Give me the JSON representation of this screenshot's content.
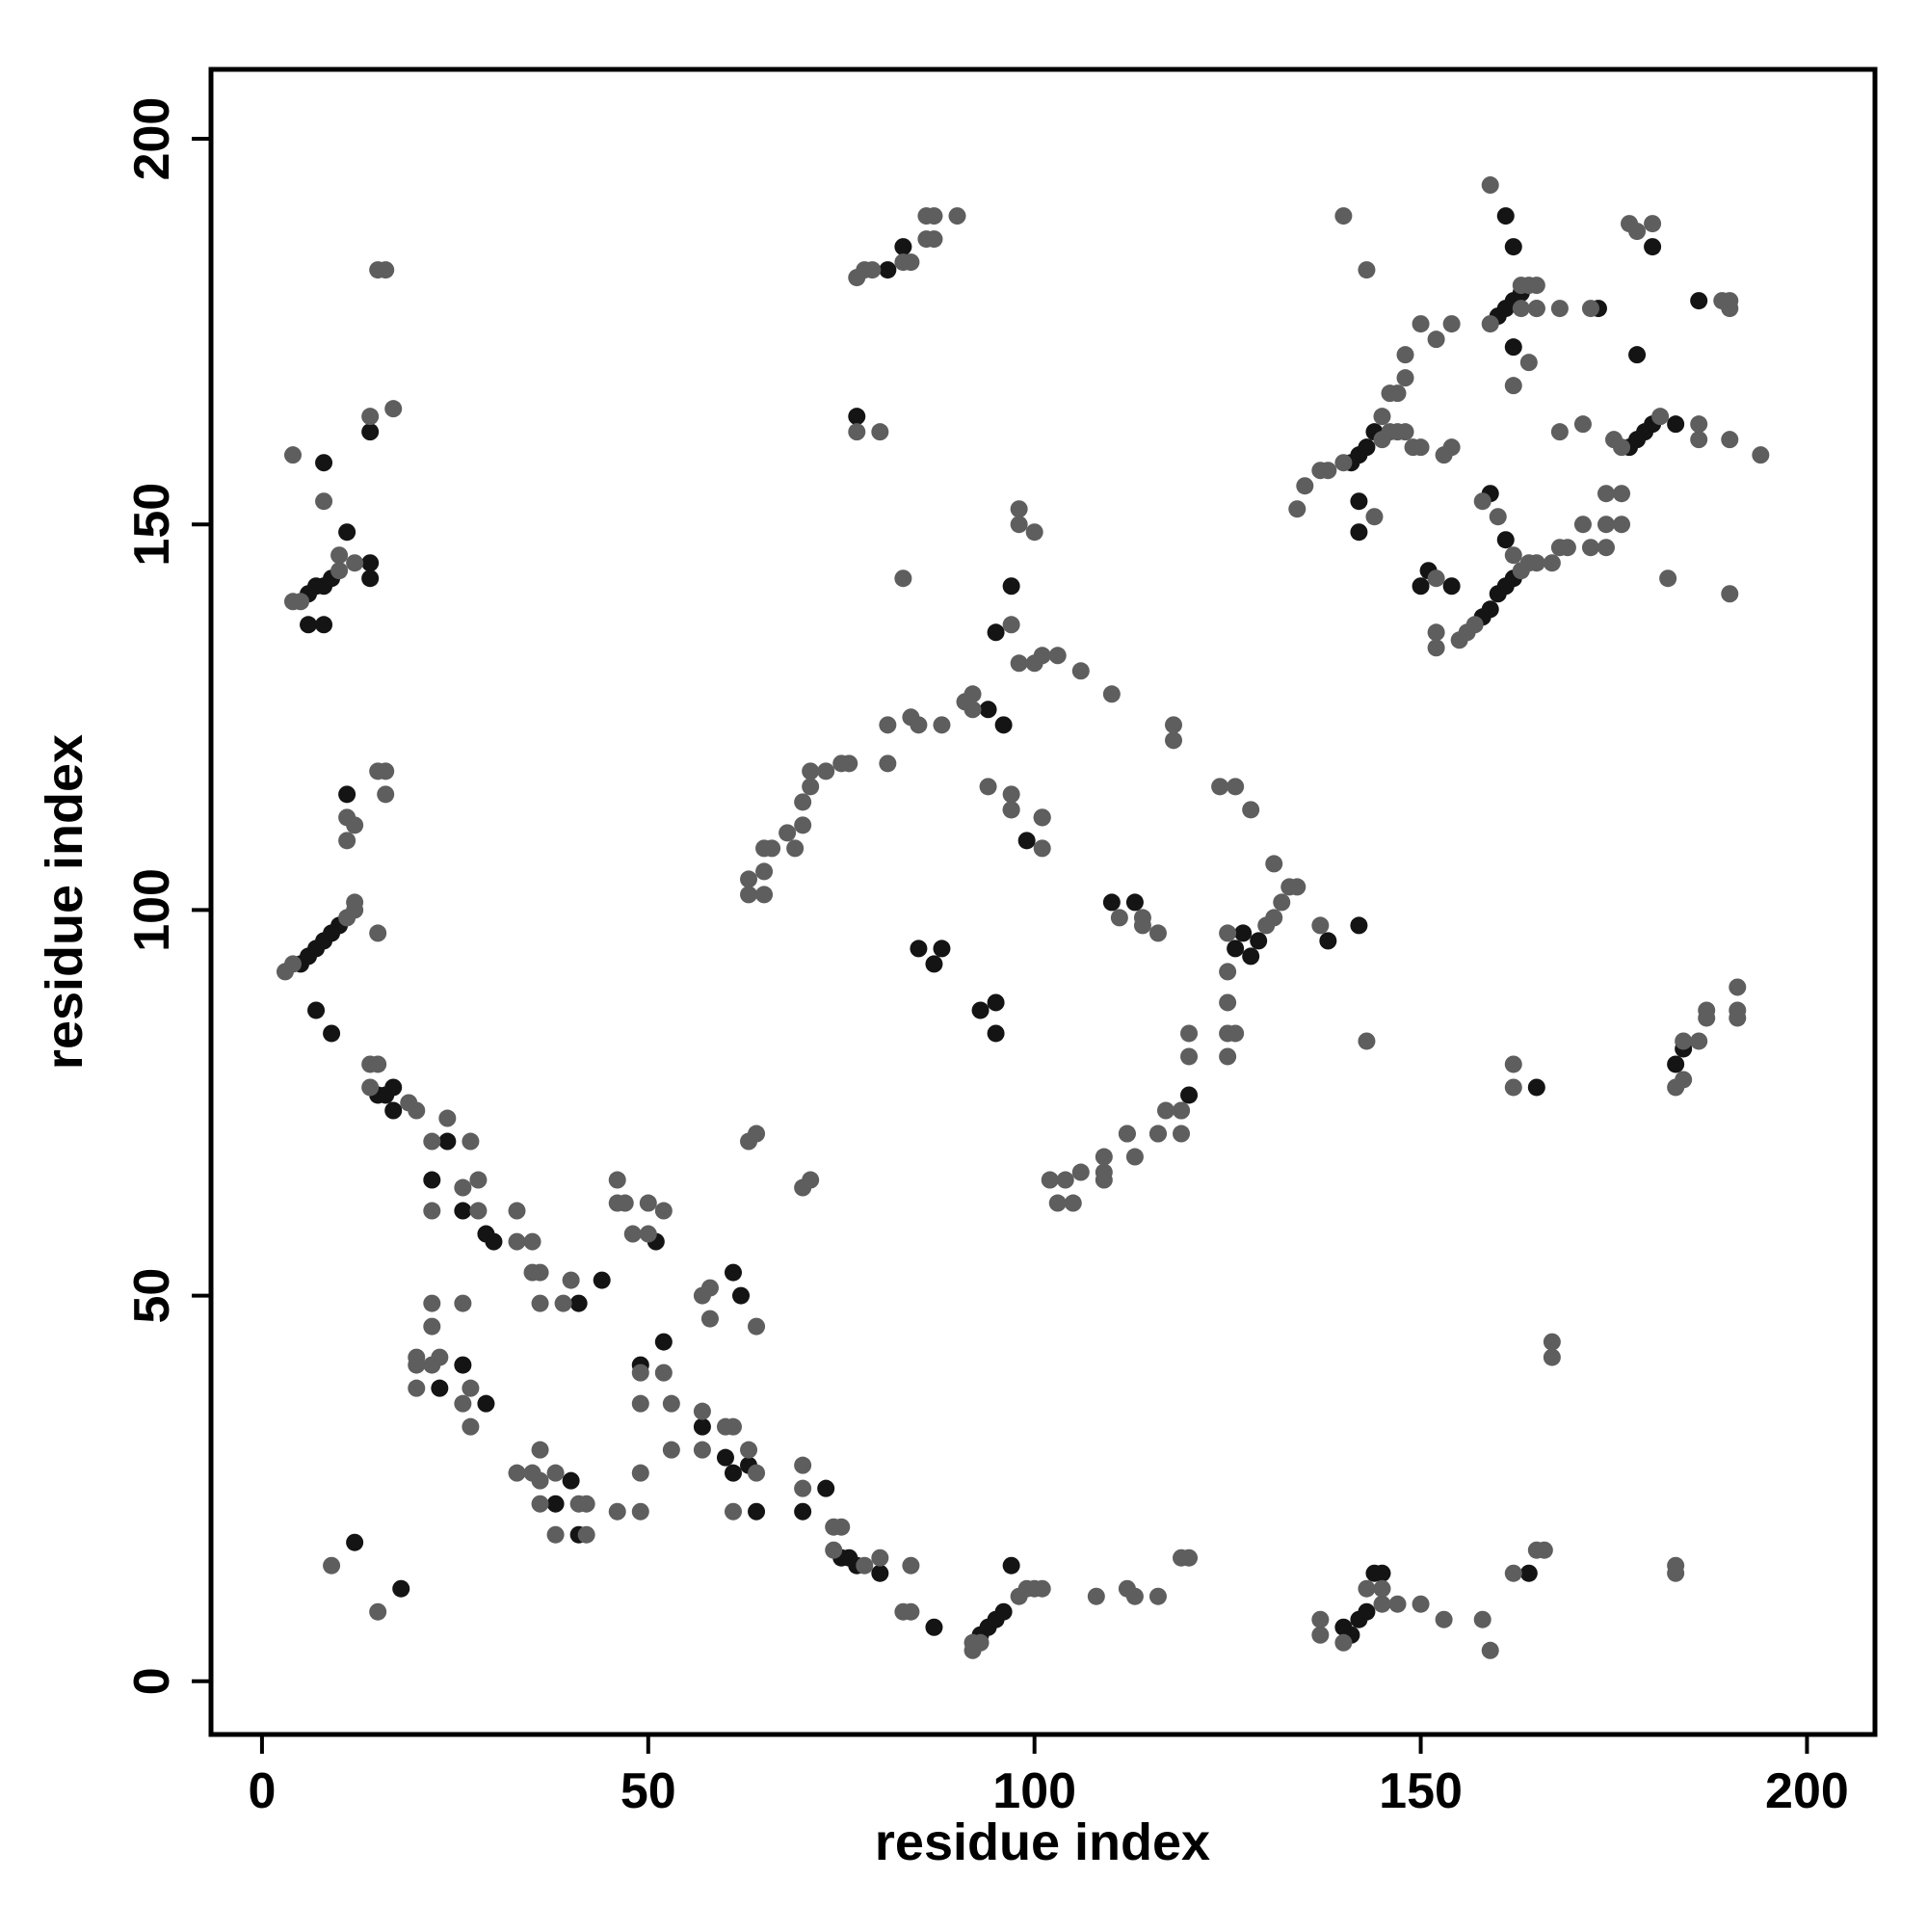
{
  "chart_data": {
    "type": "scatter",
    "xlabel": "residue index",
    "ylabel": "residue index",
    "xlim": [
      -6.6,
      208.8
    ],
    "ylim": [
      -6.9,
      209
    ],
    "xticks": [
      0,
      50,
      100,
      150,
      200
    ],
    "yticks": [
      0,
      50,
      100,
      150,
      200
    ],
    "series": [
      {
        "color": "#141414",
        "x": [
          6,
          7,
          8,
          9,
          6,
          8,
          11,
          14,
          14,
          14,
          8,
          5,
          6,
          7,
          8,
          9,
          10,
          7,
          9,
          11,
          15,
          16,
          17,
          17,
          24,
          22,
          26,
          29,
          30,
          41,
          23,
          26,
          29,
          38,
          40,
          41,
          44,
          51,
          49,
          52,
          61,
          62,
          57,
          60,
          61,
          63,
          64,
          70,
          73,
          75,
          76,
          77,
          80,
          87,
          93,
          94,
          95,
          96,
          97,
          12,
          18,
          140,
          141,
          142,
          143,
          144,
          145,
          164,
          165,
          138,
          142,
          85,
          88,
          87,
          93,
          95,
          95,
          94,
          96,
          95,
          97,
          99,
          101,
          126,
          127,
          128,
          129,
          110,
          113,
          120,
          81,
          83,
          77,
          141,
          142,
          143,
          144,
          142,
          142,
          150,
          151,
          154,
          158,
          159,
          160,
          161,
          162,
          161,
          159,
          160,
          161,
          162,
          163,
          162,
          161,
          162,
          173,
          177,
          178,
          179,
          180,
          183,
          178,
          180,
          186,
          184,
          183
        ],
        "y": [
          141,
          142,
          142,
          143,
          137,
          137,
          149,
          143,
          145,
          162,
          158,
          93,
          94,
          95,
          96,
          97,
          98,
          87,
          84,
          115,
          76,
          76,
          77,
          74,
          70,
          65,
          61,
          58,
          57,
          49,
          38,
          41,
          36,
          23,
          26,
          19,
          52,
          57,
          41,
          44,
          53,
          50,
          33,
          29,
          27,
          28,
          22,
          22,
          25,
          16,
          16,
          15,
          14,
          7,
          6,
          7,
          8,
          9,
          15,
          18,
          12,
          7,
          6,
          8,
          9,
          14,
          14,
          14,
          77,
          96,
          98,
          95,
          95,
          93,
          87,
          88,
          84,
          126,
          124,
          136,
          142,
          109,
          112,
          95,
          97,
          94,
          96,
          101,
          101,
          76,
          183,
          186,
          164,
          158,
          159,
          160,
          162,
          153,
          149,
          142,
          144,
          142,
          138,
          139,
          141,
          142,
          143,
          148,
          154,
          177,
          178,
          179,
          180,
          186,
          190,
          173,
          178,
          160,
          161,
          162,
          163,
          163,
          172,
          186,
          179,
          82,
          80
        ]
      },
      {
        "color": "#5e5e5e",
        "x": [
          4,
          5,
          10,
          10,
          12,
          4,
          8,
          14,
          17,
          15,
          16,
          3,
          4,
          11,
          12,
          12,
          15,
          11,
          11,
          12,
          15,
          16,
          16,
          14,
          15,
          14,
          19,
          20,
          22,
          24,
          27,
          26,
          28,
          28,
          33,
          33,
          35,
          35,
          36,
          36,
          22,
          22,
          26,
          20,
          20,
          22,
          22,
          23,
          20,
          27,
          26,
          27,
          33,
          35,
          36,
          36,
          38,
          36,
          38,
          41,
          39,
          40,
          42,
          42,
          46,
          46,
          47,
          48,
          50,
          50,
          52,
          49,
          49,
          52,
          53,
          53,
          49,
          49,
          46,
          57,
          58,
          58,
          64,
          57,
          57,
          60,
          61,
          63,
          64,
          61,
          70,
          70,
          74,
          74,
          75,
          78,
          80,
          84,
          83,
          84,
          92,
          98,
          99,
          100,
          101,
          92,
          93,
          108,
          112,
          113,
          116,
          120,
          119,
          137,
          137,
          140,
          143,
          145,
          145,
          147,
          150,
          153,
          158,
          159,
          162,
          165,
          166,
          183,
          183,
          9,
          15,
          167,
          167,
          63,
          63,
          65,
          66,
          65,
          65,
          68,
          69,
          70,
          70,
          71,
          71,
          73,
          75,
          76,
          81,
          81,
          84,
          85,
          88,
          91,
          92,
          98,
          100,
          101,
          103,
          106,
          97,
          98,
          98,
          100,
          97,
          92,
          83,
          64,
          63,
          70,
          71,
          94,
          97,
          97,
          101,
          101,
          102,
          103,
          104,
          105,
          106,
          109,
          109,
          109,
          112,
          112,
          113,
          116,
          116,
          117,
          119,
          119,
          119,
          120,
          120,
          125,
          125,
          125,
          126,
          125,
          130,
          131,
          132,
          133,
          134,
          125,
          131,
          128,
          124,
          126,
          137,
          111,
          114,
          116,
          114,
          110,
          118,
          118,
          143,
          77,
          78,
          79,
          83,
          84,
          86,
          87,
          86,
          87,
          90,
          77,
          80,
          134,
          135,
          137,
          138,
          140,
          145,
          146,
          147,
          148,
          149,
          150,
          144,
          145,
          146,
          147,
          148,
          148,
          150,
          152,
          154,
          154,
          153,
          152,
          152,
          152,
          155,
          156,
          157,
          163,
          164,
          165,
          158,
          160,
          162,
          159,
          163,
          164,
          165,
          165,
          163,
          159,
          162,
          164,
          165,
          168,
          172,
          168,
          171,
          175,
          176,
          181,
          186,
          186,
          190,
          177,
          178,
          180,
          189,
          190,
          190,
          194,
          182,
          190,
          168,
          169,
          172,
          174,
          171,
          174,
          176,
          176,
          174,
          167,
          183,
          184,
          184,
          186,
          187,
          187,
          191,
          191,
          191,
          162,
          162,
          140,
          143
        ],
        "y": [
          140,
          140,
          144,
          146,
          145,
          159,
          153,
          164,
          165,
          183,
          183,
          92,
          93,
          99,
          100,
          101,
          97,
          112,
          109,
          111,
          118,
          118,
          115,
          80,
          80,
          77,
          75,
          74,
          70,
          73,
          70,
          64,
          65,
          61,
          61,
          57,
          57,
          53,
          53,
          49,
          61,
          49,
          49,
          42,
          41,
          46,
          41,
          42,
          38,
          38,
          36,
          33,
          27,
          27,
          30,
          26,
          27,
          23,
          19,
          23,
          49,
          52,
          23,
          19,
          65,
          62,
          62,
          58,
          62,
          58,
          61,
          40,
          36,
          40,
          36,
          30,
          27,
          22,
          22,
          50,
          51,
          47,
          46,
          35,
          30,
          33,
          33,
          30,
          27,
          22,
          28,
          25,
          20,
          17,
          20,
          15,
          16,
          15,
          9,
          9,
          4,
          11,
          12,
          12,
          12,
          5,
          5,
          11,
          12,
          11,
          11,
          16,
          16,
          8,
          6,
          5,
          12,
          12,
          10,
          10,
          10,
          8,
          8,
          4,
          14,
          17,
          17,
          15,
          14,
          15,
          9,
          42,
          44,
          104,
          102,
          108,
          108,
          105,
          102,
          110,
          108,
          111,
          114,
          116,
          118,
          118,
          119,
          119,
          124,
          119,
          125,
          124,
          124,
          127,
          128,
          132,
          132,
          133,
          133,
          131,
          137,
          152,
          150,
          149,
          113,
          126,
          143,
          71,
          70,
          64,
          65,
          116,
          113,
          115,
          112,
          108,
          65,
          62,
          65,
          62,
          66,
          66,
          65,
          68,
          71,
          71,
          68,
          71,
          71,
          74,
          74,
          71,
          74,
          81,
          84,
          81,
          84,
          88,
          84,
          92,
          98,
          99,
          101,
          103,
          103,
          97,
          106,
          113,
          116,
          116,
          98,
          99,
          99,
          97,
          98,
          128,
          124,
          122,
          83,
          182,
          183,
          183,
          184,
          184,
          187,
          187,
          190,
          190,
          190,
          162,
          162,
          152,
          155,
          157,
          157,
          158,
          161,
          162,
          162,
          162,
          160,
          160,
          151,
          164,
          167,
          167,
          169,
          172,
          176,
          174,
          176,
          160,
          159,
          136,
          134,
          143,
          135,
          136,
          137,
          144,
          145,
          145,
          153,
          151,
          146,
          176,
          181,
          181,
          181,
          178,
          178,
          194,
          168,
          171,
          178,
          178,
          178,
          162,
          163,
          161,
          160,
          164,
          163,
          161,
          161,
          189,
          188,
          189,
          179,
          178,
          179,
          159,
          143,
          141,
          147,
          147,
          147,
          147,
          150,
          150,
          150,
          154,
          154,
          145,
          77,
          78,
          83,
          83,
          86,
          87,
          86,
          87,
          90,
          77,
          80,
          190,
          183
        ]
      }
    ]
  }
}
